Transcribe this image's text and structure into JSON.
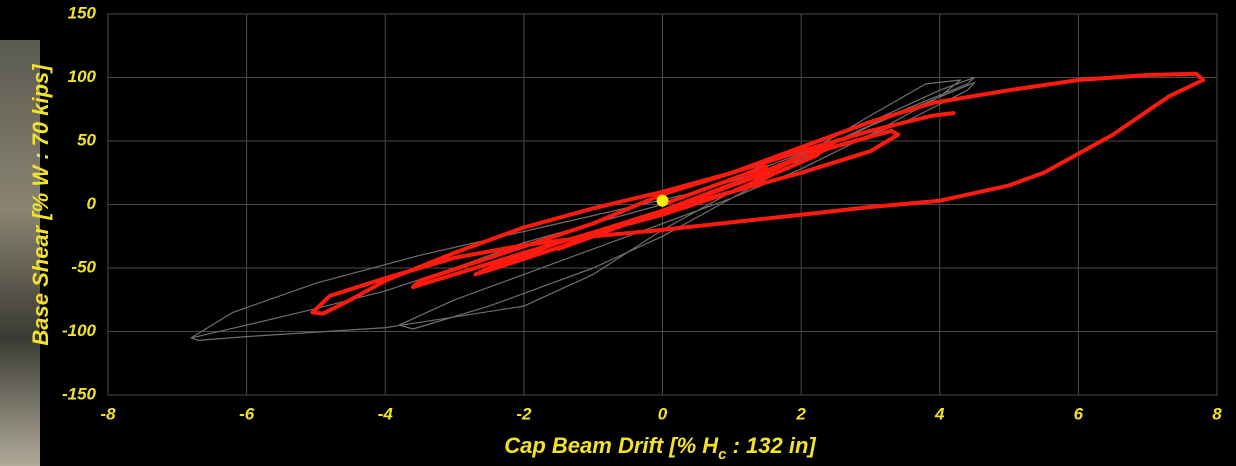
{
  "chart_data": {
    "type": "line",
    "x_label": [
      "Cap Beam Drift [% H",
      "c",
      " : 132 in]"
    ],
    "y_label": "Base Shear [% W : 70 kips]",
    "xlim": [
      -8,
      8
    ],
    "ylim": [
      -150,
      150
    ],
    "xticks": [
      -8,
      -6,
      -4,
      -2,
      0,
      2,
      4,
      6,
      8
    ],
    "yticks": [
      -150,
      -100,
      -50,
      0,
      50,
      100,
      150
    ],
    "grid": true,
    "series": [
      {
        "type": "line",
        "color": "#6e6e6e",
        "x": [
          0,
          1,
          2,
          3,
          4,
          4.5,
          4.4,
          3.5,
          2.5,
          1,
          0,
          -1,
          -2,
          -3,
          -4,
          -5,
          -6,
          -6.8,
          -6.7,
          -6,
          -4,
          -2,
          -1,
          0,
          1,
          2,
          3,
          3.8,
          4.3,
          4,
          3,
          2,
          1,
          0,
          -1,
          -2,
          -3,
          -3.8,
          -3.6,
          -2.5,
          -1,
          0,
          1,
          2,
          3,
          4.5,
          4.4,
          3.5,
          2,
          0.5,
          -1.5,
          -3.5,
          -5,
          -6.2,
          -6.8
        ],
        "y": [
          0,
          20,
          45,
          65,
          90,
          100,
          95,
          75,
          50,
          20,
          0,
          -15,
          -30,
          -50,
          -68,
          -82,
          -95,
          -105,
          -107,
          -104,
          -97,
          -80,
          -55,
          -20,
          10,
          38,
          70,
          95,
          98,
          85,
          55,
          28,
          5,
          -15,
          -35,
          -55,
          -75,
          -95,
          -98,
          -80,
          -50,
          -25,
          5,
          35,
          62,
          96,
          90,
          65,
          35,
          10,
          -15,
          -40,
          -62,
          -85,
          -105
        ]
      },
      {
        "type": "line",
        "color": "#ff1a10",
        "x": [
          0,
          1,
          1.5,
          1.2,
          0,
          -1,
          -1.5,
          -1.2,
          0,
          1.5,
          2.3,
          2.5,
          2.2,
          1,
          0,
          -1.5,
          -2.5,
          -2.7,
          -2.4,
          -1,
          0,
          1,
          2,
          3.3,
          3.4,
          3,
          2,
          0,
          -1,
          -2,
          -3,
          -3.6,
          -3.5,
          -2.5,
          -1,
          0,
          1,
          2,
          3,
          3.9,
          5,
          6,
          7,
          7.7,
          7.8,
          7.3,
          6.5,
          6,
          5.5,
          5,
          4,
          3,
          2,
          0,
          -1,
          -2,
          -3,
          -4,
          -4.8,
          -5.05,
          -4.9,
          -4.5,
          -4,
          -3,
          -2,
          -1,
          0,
          1,
          2,
          3,
          3.9,
          4.2
        ],
        "y": [
          0,
          20,
          30,
          20,
          -5,
          -25,
          -35,
          -28,
          -5,
          25,
          45,
          50,
          38,
          10,
          -8,
          -30,
          -50,
          -55,
          -50,
          -25,
          -5,
          15,
          38,
          58,
          55,
          42,
          25,
          -5,
          -22,
          -38,
          -55,
          -65,
          -60,
          -42,
          -15,
          8,
          25,
          45,
          65,
          80,
          90,
          98,
          102,
          103,
          98,
          85,
          55,
          40,
          25,
          15,
          3,
          -2,
          -8,
          -20,
          -25,
          -32,
          -42,
          -58,
          -72,
          -85,
          -86,
          -75,
          -60,
          -38,
          -18,
          -3,
          10,
          25,
          42,
          58,
          70,
          72
        ]
      },
      {
        "type": "scatter",
        "color": "#ffee00",
        "x": [
          0
        ],
        "y": [
          3
        ]
      }
    ]
  }
}
